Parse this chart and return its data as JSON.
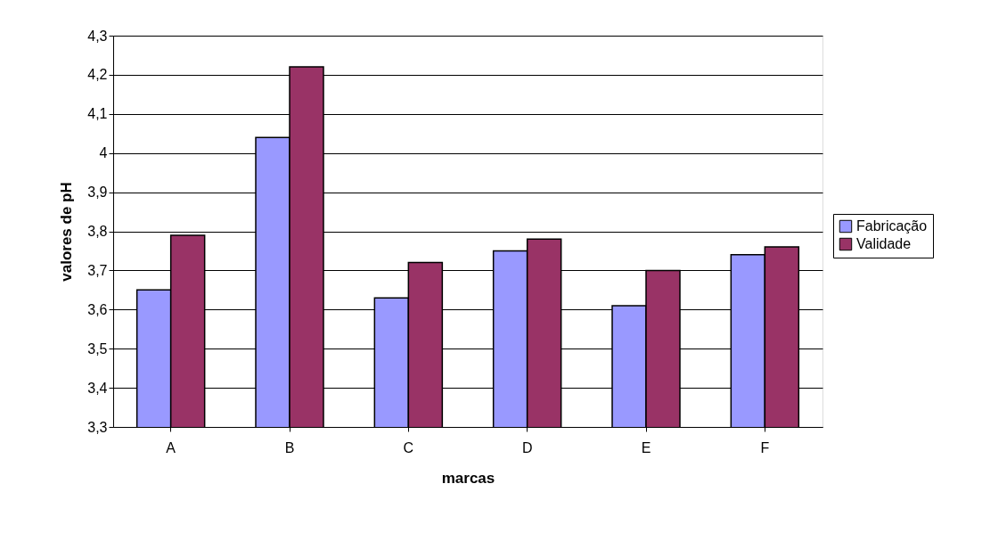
{
  "chart_data": {
    "type": "bar",
    "xlabel": "marcas",
    "ylabel": "valores de pH",
    "categories": [
      "A",
      "B",
      "C",
      "D",
      "E",
      "F"
    ],
    "series": [
      {
        "name": "Fabricação",
        "color": "#9999ff",
        "values": [
          3.65,
          4.04,
          3.63,
          3.75,
          3.61,
          3.74
        ]
      },
      {
        "name": "Validade",
        "color": "#993366",
        "values": [
          3.79,
          4.22,
          3.72,
          3.78,
          3.7,
          3.76
        ]
      }
    ],
    "ylim": [
      3.3,
      4.3
    ],
    "yticks": [
      {
        "value": 3.3,
        "label": "3,3"
      },
      {
        "value": 3.4,
        "label": "3,4"
      },
      {
        "value": 3.5,
        "label": "3,5"
      },
      {
        "value": 3.6,
        "label": "3,6"
      },
      {
        "value": 3.7,
        "label": "3,7"
      },
      {
        "value": 3.8,
        "label": "3,8"
      },
      {
        "value": 3.9,
        "label": "3,9"
      },
      4,
      {
        "value": 4.1,
        "label": "4,1"
      },
      {
        "value": 4.2,
        "label": "4,2"
      },
      {
        "value": 4.3,
        "label": "4,3"
      }
    ],
    "grid": "y",
    "legend": "right"
  }
}
